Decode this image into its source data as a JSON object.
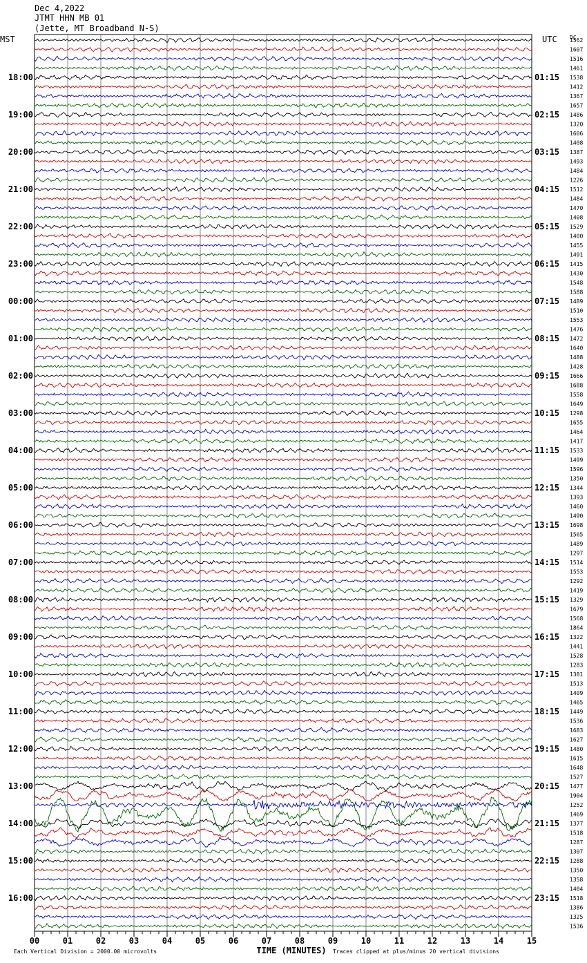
{
  "header": {
    "date": "Dec 4,2022",
    "station": "JTMT HHN MB 01",
    "location": "(Jette, MT Broadband N-S)"
  },
  "left_axis": {
    "title": "MST",
    "labels": [
      "18:00",
      "19:00",
      "20:00",
      "21:00",
      "22:00",
      "23:00",
      "00:00",
      "01:00",
      "02:00",
      "03:00",
      "04:00",
      "05:00",
      "06:00",
      "07:00",
      "08:00",
      "09:00",
      "10:00",
      "11:00",
      "12:00",
      "13:00",
      "14:00",
      "15:00",
      "16:00"
    ]
  },
  "right_axis": {
    "title": "UTC",
    "labels": [
      "01:15",
      "02:15",
      "03:15",
      "04:15",
      "05:15",
      "06:15",
      "07:15",
      "08:15",
      "09:15",
      "10:15",
      "11:15",
      "12:15",
      "13:15",
      "14:15",
      "15:15",
      "16:15",
      "17:15",
      "18:15",
      "19:15",
      "20:15",
      "21:15",
      "22:15",
      "23:15"
    ]
  },
  "dc": {
    "title": "DC",
    "values": [
      1562,
      1607,
      1516,
      1461,
      1538,
      1412,
      1367,
      1657,
      1486,
      1320,
      1606,
      1408,
      1387,
      1493,
      1484,
      1226,
      1512,
      1484,
      1470,
      1408,
      1529,
      1400,
      1455,
      1491,
      1415,
      1430,
      1548,
      1588,
      1489,
      1510,
      1553,
      1476,
      1472,
      1640,
      1488,
      1428,
      1666,
      1688,
      1558,
      1649,
      1298,
      1655,
      1464,
      1417,
      1533,
      1499,
      1596,
      1350,
      1344,
      1393,
      1460,
      1490,
      1698,
      1565,
      1489,
      1297,
      1514,
      1553,
      1292,
      1419,
      1329,
      1679,
      1568,
      1864,
      1322,
      1441,
      1528,
      1283,
      1381,
      1513,
      1409,
      1465,
      1449,
      1536,
      1683,
      1627,
      1480,
      1615,
      1648,
      1527,
      1477,
      1904,
      1252,
      1469,
      1377,
      1518,
      1287,
      1307,
      1288,
      1350,
      1358,
      1404,
      1518,
      1386,
      1325,
      1536
    ]
  },
  "x_axis": {
    "title": "TIME (MINUTES)",
    "labels": [
      "00",
      "01",
      "02",
      "03",
      "04",
      "05",
      "06",
      "07",
      "08",
      "09",
      "10",
      "11",
      "12",
      "13",
      "14",
      "15"
    ]
  },
  "footer": {
    "scale": "Each Vertical Division = 2000.00 microvolts",
    "clip": "Traces clipped at plus/minus 20 vertical divisions"
  }
}
